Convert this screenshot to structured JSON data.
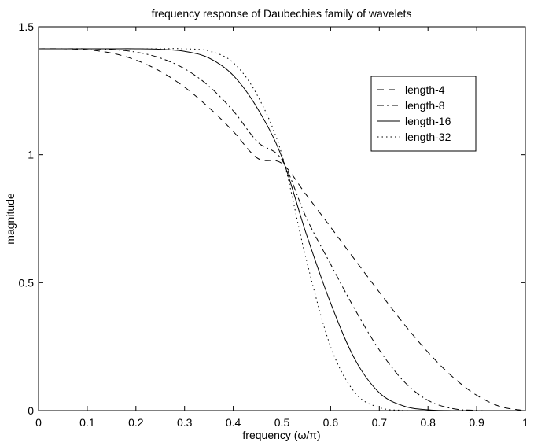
{
  "chart_data": {
    "type": "line",
    "title": "frequency response of Daubechies family of wavelets",
    "xlabel": "frequency (ω/π)",
    "ylabel": "magnitude",
    "xlim": [
      0,
      1
    ],
    "ylim": [
      0,
      1.5
    ],
    "xticks": [
      "0",
      "0.1",
      "0.2",
      "0.3",
      "0.4",
      "0.5",
      "0.6",
      "0.7",
      "0.8",
      "0.9",
      "1"
    ],
    "yticks": [
      "0",
      "0.5",
      "1",
      "1.5"
    ],
    "grid": false,
    "legend_position": "top-right",
    "x": [
      0,
      0.05,
      0.1,
      0.15,
      0.2,
      0.25,
      0.3,
      0.35,
      0.4,
      0.45,
      0.5,
      0.55,
      0.6,
      0.65,
      0.7,
      0.75,
      0.8,
      0.85,
      0.9,
      0.95,
      1.0
    ],
    "series": [
      {
        "name": "length-4",
        "line_style": "dashed",
        "values": [
          1.414,
          1.414,
          1.41,
          1.397,
          1.37,
          1.326,
          1.264,
          1.184,
          1.091,
          0.986,
          0.966,
          0.843,
          0.717,
          0.589,
          0.463,
          0.34,
          0.228,
          0.133,
          0.06,
          0.015,
          0.0
        ]
      },
      {
        "name": "length-8",
        "line_style": "dash-dot",
        "values": [
          1.414,
          1.414,
          1.414,
          1.411,
          1.401,
          1.378,
          1.336,
          1.268,
          1.171,
          1.05,
          0.98,
          0.754,
          0.572,
          0.395,
          0.237,
          0.115,
          0.04,
          0.008,
          0.001,
          0.0,
          0.0
        ]
      },
      {
        "name": "length-16",
        "line_style": "solid",
        "values": [
          1.414,
          1.414,
          1.414,
          1.414,
          1.414,
          1.412,
          1.404,
          1.378,
          1.31,
          1.18,
          0.99,
          0.69,
          0.42,
          0.2,
          0.07,
          0.018,
          0.003,
          0.0,
          0.0,
          0.0,
          0.0
        ]
      },
      {
        "name": "length-32",
        "line_style": "dotted",
        "values": [
          1.414,
          1.414,
          1.414,
          1.414,
          1.414,
          1.414,
          1.414,
          1.405,
          1.36,
          1.23,
          1.0,
          0.59,
          0.25,
          0.07,
          0.012,
          0.001,
          0.0,
          0.0,
          0.0,
          0.0,
          0.0
        ]
      }
    ]
  }
}
